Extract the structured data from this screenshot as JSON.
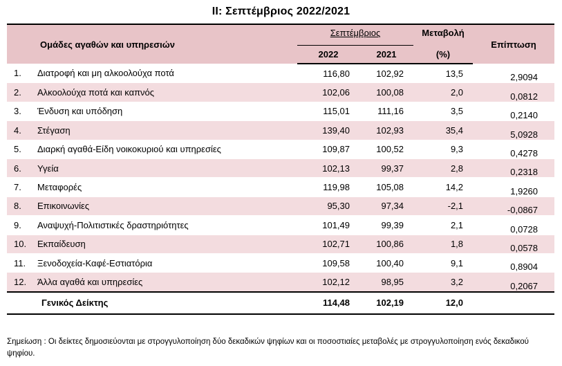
{
  "title": "II: Σεπτέμβριος 2022/2021",
  "header": {
    "group_label": "Ομάδες αγαθών και υπηρεσιών",
    "month_label": "Σεπτέμβριος",
    "year1": "2022",
    "year2": "2021",
    "change_label": "Μεταβολή",
    "change_unit": "(%)",
    "weight_label": "Επίπτωση"
  },
  "rows": [
    {
      "num": "1.",
      "label": "Διατροφή και μη αλκοολούχα ποτά",
      "v2022": "116,80",
      "v2021": "102,92",
      "change": "13,5",
      "weight": "2,9094"
    },
    {
      "num": "2.",
      "label": "Αλκοολούχα ποτά και καπνός",
      "v2022": "102,06",
      "v2021": "100,08",
      "change": "2,0",
      "weight": "0,0812"
    },
    {
      "num": "3.",
      "label": "Ένδυση και υπόδηση",
      "v2022": "115,01",
      "v2021": "111,16",
      "change": "3,5",
      "weight": "0,2140"
    },
    {
      "num": "4.",
      "label": "Στέγαση",
      "v2022": "139,40",
      "v2021": "102,93",
      "change": "35,4",
      "weight": "5,0928"
    },
    {
      "num": "5.",
      "label": "Διαρκή αγαθά-Είδη νοικοκυριού και υπηρεσίες",
      "v2022": "109,87",
      "v2021": "100,52",
      "change": "9,3",
      "weight": "0,4278"
    },
    {
      "num": "6.",
      "label": "Υγεία",
      "v2022": "102,13",
      "v2021": "99,37",
      "change": "2,8",
      "weight": "0,2318"
    },
    {
      "num": "7.",
      "label": "Μεταφορές",
      "v2022": "119,98",
      "v2021": "105,08",
      "change": "14,2",
      "weight": "1,9260"
    },
    {
      "num": "8.",
      "label": "Επικοινωνίες",
      "v2022": "95,30",
      "v2021": "97,34",
      "change": "-2,1",
      "weight": "-0,0867"
    },
    {
      "num": "9.",
      "label": "Αναψυχή-Πολιτιστικές δραστηριότητες",
      "v2022": "101,49",
      "v2021": "99,39",
      "change": "2,1",
      "weight": "0,0728"
    },
    {
      "num": "10.",
      "label": "Εκπαίδευση",
      "v2022": "102,71",
      "v2021": "100,86",
      "change": "1,8",
      "weight": "0,0578"
    },
    {
      "num": "11.",
      "label": "Ξενοδοχεία-Καφέ-Εστιατόρια",
      "v2022": "109,58",
      "v2021": "100,40",
      "change": "9,1",
      "weight": "0,8904"
    },
    {
      "num": "12.",
      "label": "Άλλα αγαθά και υπηρεσίες",
      "v2022": "102,12",
      "v2021": "98,95",
      "change": "3,2",
      "weight": "0,2067"
    }
  ],
  "total": {
    "label": "Γενικός Δείκτης",
    "v2022": "114,48",
    "v2021": "102,19",
    "change": "12,0"
  },
  "note": "Σημείωση :  Οι δείκτες δημοσιεύονται με στρογγυλοποίηση δύο δεκαδικών ψηφίων και οι ποσοστιαίες μεταβολές με στρογγυλοποίηση ενός δεκαδικού ψηφίου.",
  "colors": {
    "header_bg": "#e8c4c8",
    "shade_bg": "#f3dcdf"
  }
}
